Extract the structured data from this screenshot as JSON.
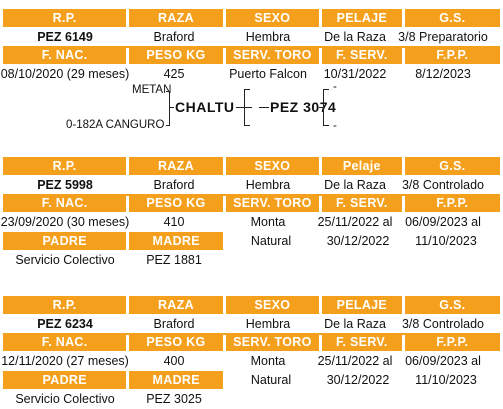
{
  "animals": [
    {
      "headers": {
        "rp": "R.P.",
        "raza": "RAZA",
        "sexo": "SEXO",
        "pelaje": "PELAJE",
        "gs": "G.S.",
        "fnac": "F. NAC.",
        "peso": "PESO KG",
        "serv_toro": "SERV. TORO",
        "fserv": "F. SERV.",
        "fpp": "F.P.P."
      },
      "rp": "PEZ 6149",
      "raza": "Braford",
      "sexo": "Hembra",
      "pelaje": "De la Raza",
      "gs": "3/8 Preparatorio",
      "fnac": "08/10/2020 (29 meses)",
      "peso": "425",
      "serv_toro": "Puerto Falcon",
      "fserv": "10/31/2022",
      "fpp": "8/12/2023",
      "pedigree": {
        "sire": "CHALTU",
        "sire_sire": "METAN",
        "sire_dam": "0-182A CANGURO",
        "self": "PEZ 3074",
        "dash1": "-",
        "dash2": "-"
      }
    },
    {
      "headers": {
        "rp": "R.P.",
        "raza": "RAZA",
        "sexo": "SEXO",
        "pelaje": "Pelaje",
        "gs": "G.S.",
        "fnac": "F. NAC.",
        "peso": "PESO KG",
        "serv_toro": "SERV. TORO",
        "fserv": "F. SERV.",
        "fpp": "F.P.P.",
        "padre": "PADRE",
        "madre": "MADRE"
      },
      "rp": "PEZ 5998",
      "raza": "Braford",
      "sexo": "Hembra",
      "pelaje": "De la Raza",
      "gs": "3/8 Controlado",
      "fnac": "23/09/2020 (30 meses)",
      "peso": "410",
      "serv_toro_1": "Monta",
      "serv_toro_2": "Natural",
      "fserv_1": "25/11/2022 al",
      "fserv_2": "30/12/2022",
      "fpp_1": "06/09/2023 al",
      "fpp_2": "11/10/2023",
      "padre": "Servicio Colectivo",
      "madre": "PEZ 1881"
    },
    {
      "headers": {
        "rp": "R.P.",
        "raza": "RAZA",
        "sexo": "SEXO",
        "pelaje": "PELAJE",
        "gs": "G.S.",
        "fnac": "F. NAC.",
        "peso": "PESO KG",
        "serv_toro": "SERV. TORO",
        "fserv": "F. SERV.",
        "fpp": "F.P.P.",
        "padre": "PADRE",
        "madre": "MADRE"
      },
      "rp": "PEZ 6234",
      "raza": "Braford",
      "sexo": "Hembra",
      "pelaje": "De la Raza",
      "gs": "3/8 Controlado",
      "fnac": "12/11/2020 (27 meses)",
      "peso": "400",
      "serv_toro_1": "Monta",
      "serv_toro_2": "Natural",
      "fserv_1": "25/11/2022 al",
      "fserv_2": "30/12/2022",
      "fpp_1": "06/09/2023 al",
      "fpp_2": "11/10/2023",
      "padre": "Servicio Colectivo",
      "madre": "PEZ 3025"
    }
  ],
  "colors": {
    "accent": "#f5a01c"
  }
}
